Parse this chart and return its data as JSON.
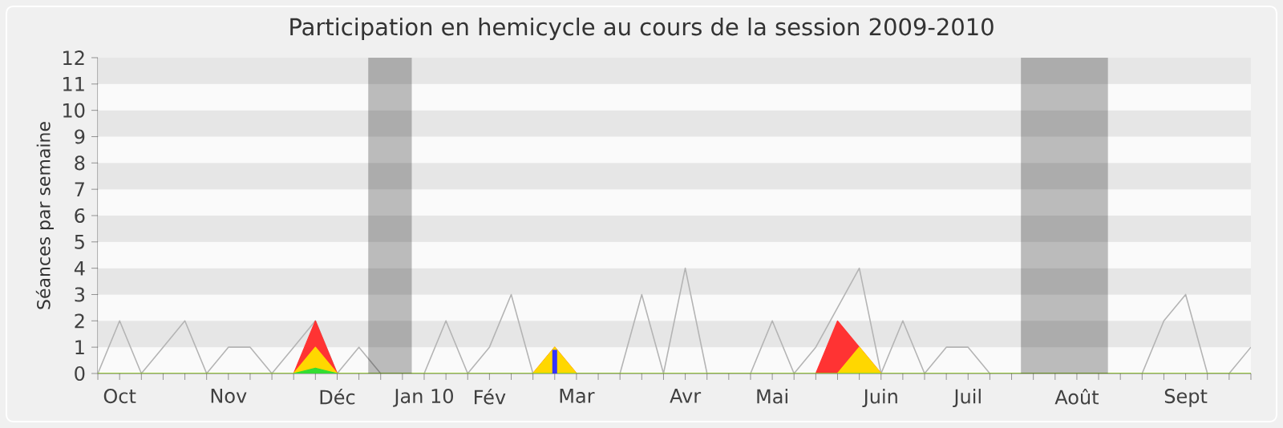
{
  "chart_data": {
    "type": "line",
    "title": "Participation en hemicycle au cours de la session 2009-2010",
    "ylabel": "Séances par semaine",
    "x": [
      "2009-09-28",
      "2009-10-05",
      "2009-10-12",
      "2009-10-19",
      "2009-10-26",
      "2009-11-02",
      "2009-11-09",
      "2009-11-16",
      "2009-11-23",
      "2009-11-30",
      "2009-12-07",
      "2009-12-14",
      "2009-12-21",
      "2009-12-28",
      "2010-01-04",
      "2010-01-11",
      "2010-01-18",
      "2010-01-25",
      "2010-02-01",
      "2010-02-08",
      "2010-02-15",
      "2010-02-22",
      "2010-03-01",
      "2010-03-08",
      "2010-03-15",
      "2010-03-22",
      "2010-03-29",
      "2010-04-05",
      "2010-04-12",
      "2010-04-19",
      "2010-04-26",
      "2010-05-03",
      "2010-05-10",
      "2010-05-17",
      "2010-05-24",
      "2010-05-31",
      "2010-06-07",
      "2010-06-14",
      "2010-06-21",
      "2010-06-28",
      "2010-07-05",
      "2010-07-12",
      "2010-07-19",
      "2010-07-26",
      "2010-08-02",
      "2010-08-09",
      "2010-08-16",
      "2010-08-23",
      "2010-08-30",
      "2010-09-06",
      "2010-09-13",
      "2010-09-20",
      "2010-09-27",
      "2010-10-04"
    ],
    "series": [
      {
        "color": "#b4b4b4",
        "values": [
          0,
          2,
          0,
          1,
          2,
          0,
          1,
          1,
          0,
          1,
          2,
          0,
          1,
          0,
          0,
          0,
          2,
          0,
          1,
          3,
          0,
          null,
          0,
          0,
          0,
          3,
          0,
          4,
          0,
          0,
          0,
          2,
          0,
          1,
          null,
          4,
          0,
          2,
          0,
          1,
          1,
          0,
          0,
          0,
          0,
          0,
          0,
          0,
          0,
          2,
          3,
          0,
          0,
          1
        ]
      },
      {
        "type": "area",
        "color": "#ff3333",
        "values": [
          0,
          0,
          0,
          0,
          0,
          0,
          0,
          0,
          0,
          0,
          2,
          0,
          0,
          0,
          0,
          0,
          0,
          0,
          0,
          0,
          0,
          1,
          0,
          0,
          0,
          0,
          0,
          0,
          0,
          0,
          0,
          0,
          0,
          0,
          2,
          1,
          0,
          0,
          0,
          0,
          0,
          0,
          0,
          0,
          0,
          0,
          0,
          0,
          0,
          0,
          0,
          0,
          0,
          0
        ]
      },
      {
        "type": "area",
        "color": "#ffd700",
        "values": [
          0,
          0,
          0,
          0,
          0,
          0,
          0,
          0,
          0,
          0,
          1,
          0,
          0,
          0,
          0,
          0,
          0,
          0,
          0,
          0,
          0,
          1,
          0,
          0,
          0,
          0,
          0,
          0,
          0,
          0,
          0,
          0,
          0,
          0,
          0,
          1,
          0,
          0,
          0,
          0,
          0,
          0,
          0,
          0,
          0,
          0,
          0,
          0,
          0,
          0,
          0,
          0,
          0,
          0
        ]
      },
      {
        "type": "area",
        "color": "#33dd33",
        "values": [
          0,
          0,
          0,
          0,
          0,
          0,
          0,
          0,
          0,
          0,
          0.2,
          0,
          0,
          0,
          0,
          0,
          0,
          0,
          0,
          0,
          0,
          0,
          0,
          0,
          0,
          0,
          0,
          0,
          0,
          0,
          0,
          0,
          0,
          0,
          0,
          0,
          0,
          0,
          0,
          0,
          0,
          0,
          0,
          0,
          0,
          0,
          0,
          0,
          0,
          0,
          0,
          0,
          0,
          0
        ]
      },
      {
        "type": "bar",
        "color": "#3333ff",
        "values": [
          0,
          0,
          0,
          0,
          0,
          0,
          0,
          0,
          0,
          0,
          0,
          0,
          0,
          0,
          0,
          0,
          0,
          0,
          0,
          0,
          0,
          0.9,
          0,
          0,
          0,
          0,
          0,
          0,
          0,
          0,
          0,
          0,
          0,
          0,
          0,
          0,
          0,
          0,
          0,
          0,
          0,
          0,
          0,
          0,
          0,
          0,
          0,
          0,
          0,
          0,
          0,
          0,
          0,
          0
        ]
      }
    ],
    "bands": [
      {
        "axis": "x",
        "from": "2009-12-24",
        "to": "2010-01-07"
      },
      {
        "axis": "x",
        "from": "2010-07-22",
        "to": "2010-08-19"
      }
    ],
    "xlim": [
      "2009-09-28",
      "2010-10-04"
    ],
    "ylim": [
      0,
      12
    ],
    "yticks": [
      0,
      1,
      2,
      3,
      4,
      5,
      6,
      7,
      8,
      9,
      10,
      11,
      12
    ],
    "xticks": [
      {
        "value": "2009-09-28",
        "label": null
      },
      {
        "value": "2009-10-05",
        "label": "Oct"
      },
      {
        "value": "2009-10-12",
        "label": null
      },
      {
        "value": "2009-10-19",
        "label": null
      },
      {
        "value": "2009-10-26",
        "label": null
      },
      {
        "value": "2009-11-02",
        "label": null
      },
      {
        "value": "2009-11-09",
        "label": "Nov"
      },
      {
        "value": "2009-11-16",
        "label": null
      },
      {
        "value": "2009-11-23",
        "label": null
      },
      {
        "value": "2009-11-30",
        "label": null
      },
      {
        "value": "2009-12-07",
        "label": null
      },
      {
        "value": "2009-12-14",
        "label": "Déc"
      },
      {
        "value": "2009-12-21",
        "label": null
      },
      {
        "value": "2009-12-28",
        "label": null
      },
      {
        "value": "2010-01-04",
        "label": null
      },
      {
        "value": "2010-01-11",
        "label": "Jan 10"
      },
      {
        "value": "2010-01-18",
        "label": null
      },
      {
        "value": "2010-01-25",
        "label": null
      },
      {
        "value": "2010-02-01",
        "label": "Fév"
      },
      {
        "value": "2010-02-08",
        "label": null
      },
      {
        "value": "2010-02-15",
        "label": null
      },
      {
        "value": "2010-02-22",
        "label": null
      },
      {
        "value": "2010-03-01",
        "label": "Mar"
      },
      {
        "value": "2010-03-08",
        "label": null
      },
      {
        "value": "2010-03-15",
        "label": null
      },
      {
        "value": "2010-03-22",
        "label": null
      },
      {
        "value": "2010-03-29",
        "label": null
      },
      {
        "value": "2010-04-05",
        "label": "Avr"
      },
      {
        "value": "2010-04-12",
        "label": null
      },
      {
        "value": "2010-04-19",
        "label": null
      },
      {
        "value": "2010-04-26",
        "label": null
      },
      {
        "value": "2010-05-03",
        "label": "Mai"
      },
      {
        "value": "2010-05-10",
        "label": null
      },
      {
        "value": "2010-05-17",
        "label": null
      },
      {
        "value": "2010-05-24",
        "label": null
      },
      {
        "value": "2010-05-31",
        "label": null
      },
      {
        "value": "2010-06-07",
        "label": "Juin"
      },
      {
        "value": "2010-06-14",
        "label": null
      },
      {
        "value": "2010-06-21",
        "label": null
      },
      {
        "value": "2010-06-28",
        "label": null
      },
      {
        "value": "2010-07-05",
        "label": "Juil"
      },
      {
        "value": "2010-07-12",
        "label": null
      },
      {
        "value": "2010-07-19",
        "label": null
      },
      {
        "value": "2010-07-26",
        "label": null
      },
      {
        "value": "2010-08-02",
        "label": null
      },
      {
        "value": "2010-08-09",
        "label": "Août"
      },
      {
        "value": "2010-08-16",
        "label": null
      },
      {
        "value": "2010-08-23",
        "label": null
      },
      {
        "value": "2010-08-30",
        "label": null
      },
      {
        "value": "2010-09-06",
        "label": null
      },
      {
        "value": "2010-09-13",
        "label": "Sept"
      },
      {
        "value": "2010-09-20",
        "label": null
      },
      {
        "value": "2010-09-27",
        "label": null
      },
      {
        "value": "2010-10-04",
        "label": null
      }
    ]
  }
}
